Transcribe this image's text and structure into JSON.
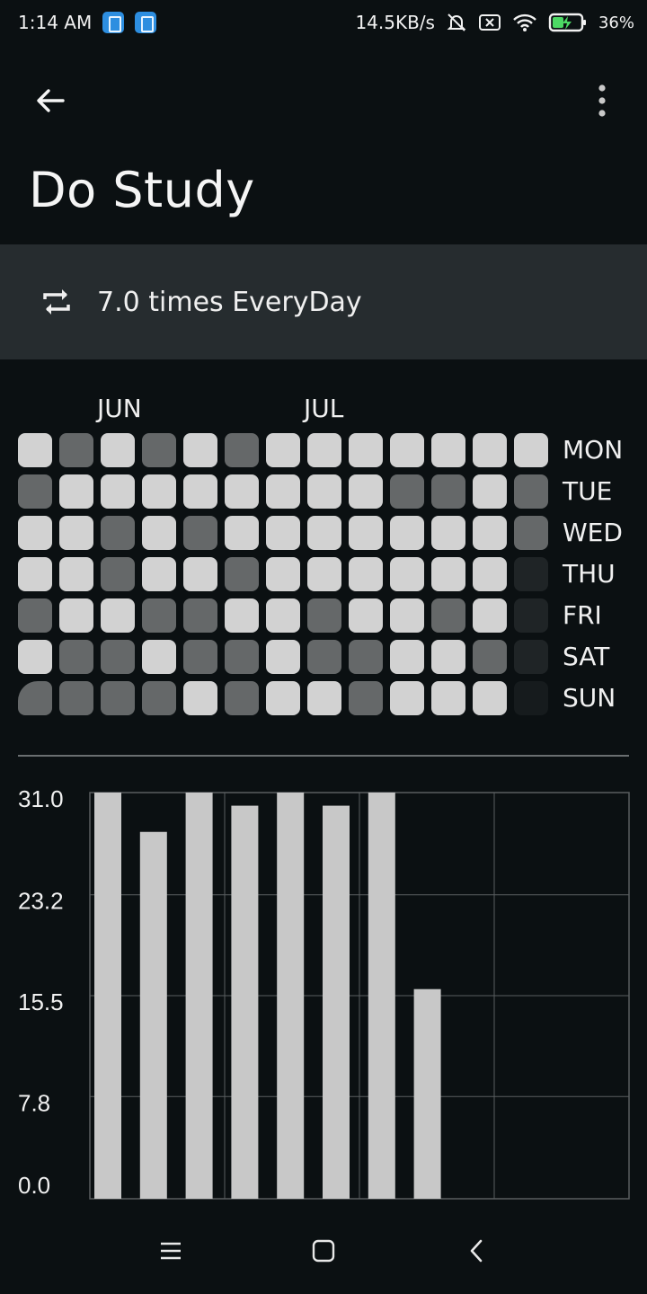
{
  "status_bar": {
    "time": "1:14 AM",
    "net_speed": "14.5KB/s",
    "battery": "36%",
    "icons": [
      "app-notification-icon",
      "app-notification-icon",
      "bell-muted-icon",
      "sim-x-icon",
      "wifi-icon",
      "battery-charging-icon"
    ]
  },
  "header": {
    "back_icon": "arrow-left-icon",
    "menu_icon": "more-vert-icon",
    "title": "Do Study"
  },
  "frequency": {
    "icon": "repeat-icon",
    "text": "7.0 times EveryDay"
  },
  "heatmap": {
    "months": [
      {
        "label": "JUN",
        "column": 2
      },
      {
        "label": "JUL",
        "column": 7
      }
    ],
    "days": [
      "MON",
      "TUE",
      "WED",
      "THU",
      "FRI",
      "SAT",
      "SUN"
    ],
    "levels_legend": {
      "2": "full",
      "1": "partial",
      "0": "none",
      "-1": "future"
    },
    "colors": {
      "full": "#d2d2d2",
      "partial": "#656869",
      "none": "#1f2426",
      "future": "#161b1d"
    },
    "columns": [
      [
        2,
        1,
        2,
        2,
        1,
        2,
        1
      ],
      [
        1,
        2,
        2,
        2,
        2,
        1,
        1
      ],
      [
        2,
        2,
        1,
        1,
        2,
        1,
        1
      ],
      [
        1,
        2,
        2,
        2,
        1,
        2,
        1
      ],
      [
        2,
        2,
        1,
        2,
        1,
        1,
        2
      ],
      [
        1,
        2,
        2,
        1,
        2,
        1,
        1
      ],
      [
        2,
        2,
        2,
        2,
        2,
        2,
        2
      ],
      [
        2,
        2,
        2,
        2,
        1,
        1,
        2
      ],
      [
        2,
        2,
        2,
        2,
        2,
        1,
        1
      ],
      [
        2,
        1,
        2,
        2,
        2,
        2,
        2
      ],
      [
        2,
        1,
        2,
        2,
        1,
        2,
        2
      ],
      [
        2,
        2,
        2,
        2,
        2,
        1,
        2
      ],
      [
        2,
        1,
        1,
        0,
        0,
        0,
        -1
      ]
    ]
  },
  "chart_data": {
    "type": "bar",
    "values": [
      31.0,
      28.0,
      31.0,
      30.0,
      31.0,
      30.0,
      31.0,
      16.0
    ],
    "ylim": [
      0,
      31.0
    ],
    "yticks": [
      "31.0",
      "23.2",
      "15.5",
      "7.8",
      "0.0"
    ],
    "bar_color": "#c8c8c8",
    "grid": true,
    "grid_color": "#5a5e60"
  },
  "nav_bar": {
    "icons": [
      "menu-icon",
      "home-square-icon",
      "back-chevron-icon"
    ]
  }
}
